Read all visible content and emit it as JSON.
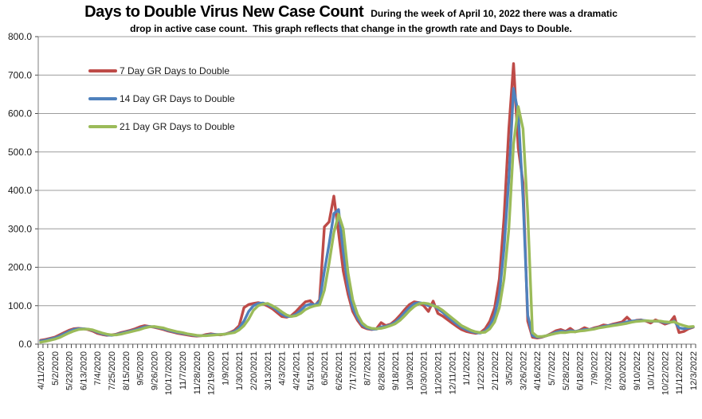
{
  "header": {
    "title": "Days to Double Virus New Case Count",
    "note_line1": "During the week of April 10, 2022 there was a dramatic",
    "note_line2": "drop in active case count.  This graph reflects that change in the growth rate and Days to Double."
  },
  "legend": {
    "items": [
      {
        "label": "7 Day GR Days to Double",
        "color": "#BE4B48"
      },
      {
        "label": "14 Day GR Days to Double",
        "color": "#4F81BD"
      },
      {
        "label": "21 Day GR Days to Double",
        "color": "#9BBB59"
      }
    ]
  },
  "colors": {
    "grid": "#9c9c9c",
    "axis": "#7f7f7f",
    "tick": "#4a4a4a",
    "label_text": "#1a1a1a"
  },
  "chart_data": {
    "type": "line",
    "title": "Days to Double Virus New Case Count",
    "annotation": "During the week of April 10, 2022 there was a dramatic drop in active case count.  This graph reflects that change in the growth rate and Days to Double.",
    "xlabel": "",
    "ylabel": "",
    "ylim": [
      0,
      800
    ],
    "ytick_step": 100,
    "ytick_labels": [
      "0.0",
      "100.0",
      "200.0",
      "300.0",
      "400.0",
      "500.0",
      "600.0",
      "700.0",
      "800.0"
    ],
    "grid": true,
    "legend_position": "inside-top-left",
    "x_label_every": 3,
    "x_labels": [
      "4/11/2020",
      "5/2/2020",
      "5/23/2020",
      "6/13/2020",
      "7/4/2020",
      "7/25/2020",
      "8/15/2020",
      "9/5/2020",
      "9/26/2020",
      "10/17/2020",
      "11/7/2020",
      "11/28/2020",
      "12/19/2020",
      "1/9/2021",
      "1/30/2021",
      "2/20/2021",
      "3/13/2021",
      "4/3/2021",
      "4/24/2021",
      "5/15/2021",
      "6/5/2021",
      "6/26/2021",
      "7/17/2021",
      "8/7/2021",
      "8/28/2021",
      "9/18/2021",
      "10/9/2021",
      "10/30/2021",
      "11/20/2021",
      "12/11/2021",
      "1/1/2022",
      "1/22/2022",
      "2/12/2022",
      "3/5/2022",
      "3/26/2022",
      "4/16/2022",
      "5/7/2022",
      "5/28/2022",
      "6/18/2022",
      "7/9/2022",
      "7/30/2022",
      "8/20/2022",
      "9/10/2022",
      "10/1/2022",
      "10/22/2022",
      "11/12/2022",
      "12/3/2022"
    ],
    "x_interval": "weekly",
    "series": [
      {
        "name": "7 Day GR Days to Double",
        "color": "#BE4B48",
        "values": [
          10,
          12,
          15,
          18,
          24,
          30,
          36,
          40,
          41,
          40,
          38,
          34,
          28,
          25,
          23,
          24,
          26,
          30,
          33,
          36,
          40,
          45,
          48,
          46,
          44,
          41,
          38,
          34,
          31,
          28,
          26,
          24,
          22,
          21,
          22,
          25,
          27,
          25,
          24,
          26,
          30,
          36,
          48,
          95,
          103,
          106,
          108,
          105,
          99,
          92,
          82,
          72,
          70,
          74,
          85,
          98,
          110,
          113,
          100,
          115,
          305,
          318,
          385,
          290,
          190,
          130,
          85,
          62,
          45,
          40,
          38,
          40,
          56,
          48,
          52,
          62,
          75,
          90,
          103,
          110,
          108,
          100,
          85,
          112,
          80,
          73,
          64,
          55,
          46,
          38,
          33,
          30,
          28,
          30,
          40,
          60,
          95,
          170,
          330,
          560,
          730,
          510,
          420,
          60,
          18,
          16,
          18,
          22,
          28,
          35,
          38,
          33,
          41,
          32,
          36,
          43,
          38,
          42,
          45,
          50,
          48,
          52,
          55,
          58,
          70,
          58,
          62,
          63,
          60,
          55,
          63,
          58,
          52,
          56,
          72,
          30,
          33,
          40,
          44
        ]
      },
      {
        "name": "14 Day GR Days to Double",
        "color": "#4F81BD",
        "values": [
          8,
          10,
          13,
          16,
          21,
          27,
          33,
          38,
          40,
          40,
          39,
          36,
          31,
          27,
          24,
          23,
          25,
          28,
          31,
          34,
          37,
          41,
          45,
          46,
          45,
          43,
          40,
          36,
          33,
          30,
          28,
          26,
          24,
          22,
          22,
          23,
          25,
          25,
          25,
          26,
          29,
          33,
          42,
          60,
          85,
          100,
          106,
          107,
          103,
          97,
          88,
          78,
          72,
          72,
          78,
          88,
          100,
          104,
          102,
          110,
          190,
          260,
          340,
          350,
          240,
          150,
          95,
          68,
          50,
          42,
          39,
          39,
          45,
          46,
          50,
          57,
          68,
          82,
          95,
          105,
          108,
          106,
          100,
          102,
          92,
          83,
          72,
          62,
          52,
          44,
          38,
          33,
          30,
          29,
          34,
          48,
          75,
          130,
          250,
          430,
          665,
          600,
          380,
          75,
          22,
          18,
          19,
          22,
          26,
          31,
          34,
          32,
          35,
          33,
          35,
          38,
          38,
          40,
          43,
          46,
          48,
          50,
          52,
          54,
          58,
          60,
          61,
          62,
          61,
          59,
          60,
          59,
          56,
          56,
          60,
          42,
          40,
          42,
          45
        ]
      },
      {
        "name": "21 Day GR Days to Double",
        "color": "#9BBB59",
        "values": [
          5,
          7,
          10,
          13,
          17,
          23,
          29,
          34,
          38,
          39,
          39,
          37,
          33,
          29,
          26,
          24,
          24,
          26,
          29,
          32,
          35,
          38,
          42,
          45,
          46,
          44,
          42,
          38,
          35,
          32,
          30,
          27,
          25,
          23,
          22,
          22,
          23,
          24,
          25,
          26,
          28,
          30,
          37,
          48,
          65,
          88,
          100,
          104,
          106,
          100,
          93,
          84,
          76,
          72,
          74,
          80,
          90,
          96,
          100,
          102,
          140,
          210,
          290,
          338,
          300,
          185,
          115,
          78,
          55,
          45,
          41,
          40,
          41,
          44,
          48,
          53,
          62,
          74,
          87,
          98,
          105,
          107,
          105,
          100,
          96,
          88,
          78,
          68,
          58,
          48,
          42,
          36,
          32,
          30,
          31,
          40,
          58,
          95,
          170,
          300,
          520,
          618,
          560,
          340,
          30,
          20,
          20,
          22,
          25,
          28,
          30,
          30,
          32,
          32,
          34,
          35,
          37,
          39,
          42,
          44,
          46,
          48,
          50,
          52,
          54,
          57,
          59,
          60,
          61,
          60,
          60,
          60,
          58,
          57,
          58,
          52,
          48,
          45,
          46
        ]
      }
    ]
  }
}
